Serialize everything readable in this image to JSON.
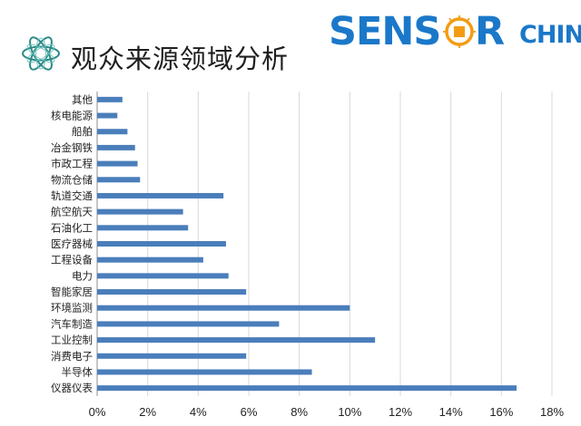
{
  "header": {
    "title": "观众来源领域分析",
    "icon": "atom-orbit-icon",
    "logo": {
      "text_sens": "SENS",
      "text_r": "R",
      "text_china": "CHINA",
      "chip_icon": "circuit-chip-icon",
      "brand_color": "#1b78c9",
      "accent_color": "#f39c12"
    }
  },
  "chart_data": {
    "type": "bar",
    "orientation": "horizontal",
    "title": "",
    "xlabel": "",
    "ylabel": "",
    "categories": [
      "其他",
      "核电能源",
      "船舶",
      "冶金钢铁",
      "市政工程",
      "物流仓储",
      "轨道交通",
      "航空航天",
      "石油化工",
      "医疗器械",
      "工程设备",
      "电力",
      "智能家居",
      "环境监测",
      "汽车制造",
      "工业控制",
      "消费电子",
      "半导体",
      "仪器仪表"
    ],
    "values": [
      1.0,
      0.8,
      1.2,
      1.5,
      1.6,
      1.7,
      5.0,
      3.4,
      3.6,
      5.1,
      4.2,
      5.2,
      5.9,
      10.0,
      7.2,
      11.0,
      5.9,
      8.5,
      16.6
    ],
    "xlim": [
      0,
      18
    ],
    "xticks": [
      0,
      2,
      4,
      6,
      8,
      10,
      12,
      14,
      16,
      18
    ],
    "tick_suffix": "%",
    "bar_color": "#4a7ebb",
    "grid": "vertical",
    "grid_color": "#d9d9d9"
  }
}
